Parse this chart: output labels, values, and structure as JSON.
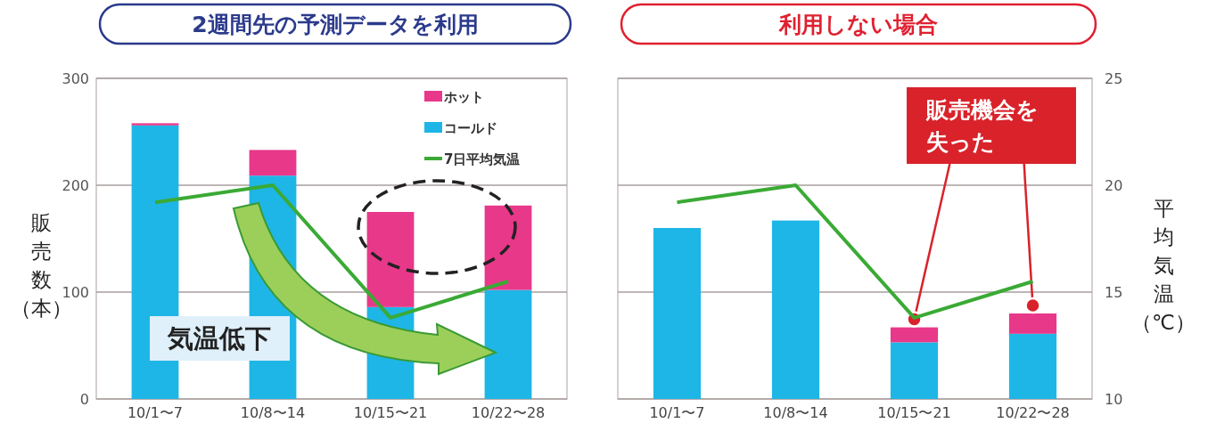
{
  "chart_data": [
    {
      "type": "bar",
      "title": "2週間先の予測データを利用",
      "categories": [
        "10/1〜7",
        "10/8〜14",
        "10/15〜21",
        "10/22〜28"
      ],
      "stacked": true,
      "series": [
        {
          "name": "コールド",
          "color": "#1eb6e6",
          "values": [
            256,
            209,
            86,
            102
          ]
        },
        {
          "name": "ホット",
          "color": "#e8388a",
          "values": [
            2,
            24,
            89,
            79
          ]
        },
        {
          "name": "7日平均気温",
          "type": "line",
          "axis": "y2",
          "color": "#3aaa35",
          "values": [
            19.2,
            20.0,
            13.8,
            15.5
          ]
        }
      ],
      "ylim": [
        0,
        300
      ],
      "yticks": [
        0,
        100,
        200,
        300
      ],
      "y2lim": [
        10,
        25
      ],
      "ylabel": "販売数（本）",
      "grid": "y",
      "legend": "top right",
      "tick_labels": [
        "x",
        "y"
      ],
      "annotations": [
        "気温低下"
      ]
    },
    {
      "type": "bar",
      "title": "利用しない場合",
      "categories": [
        "10/1〜7",
        "10/8〜14",
        "10/15〜21",
        "10/22〜28"
      ],
      "stacked": true,
      "series": [
        {
          "color": "#1eb6e6",
          "values": [
            160,
            167,
            53,
            61
          ]
        },
        {
          "color": "#e8388a",
          "values": [
            0,
            0,
            14,
            19
          ]
        },
        {
          "type": "line",
          "axis": "y2",
          "color": "#3aaa35",
          "values": [
            19.2,
            20.0,
            13.8,
            15.5
          ]
        }
      ],
      "ylim": [
        0,
        300
      ],
      "y2lim": [
        10,
        25
      ],
      "y2ticks": [
        10,
        15,
        20,
        25
      ],
      "y2label": "平均気温（℃）",
      "grid": "y",
      "tick_labels": [
        "x",
        "y2"
      ],
      "annotations": [
        {
          "text": "販売機会を失った",
          "x": "10/15〜21",
          "y": 67
        }
      ]
    }
  ]
}
